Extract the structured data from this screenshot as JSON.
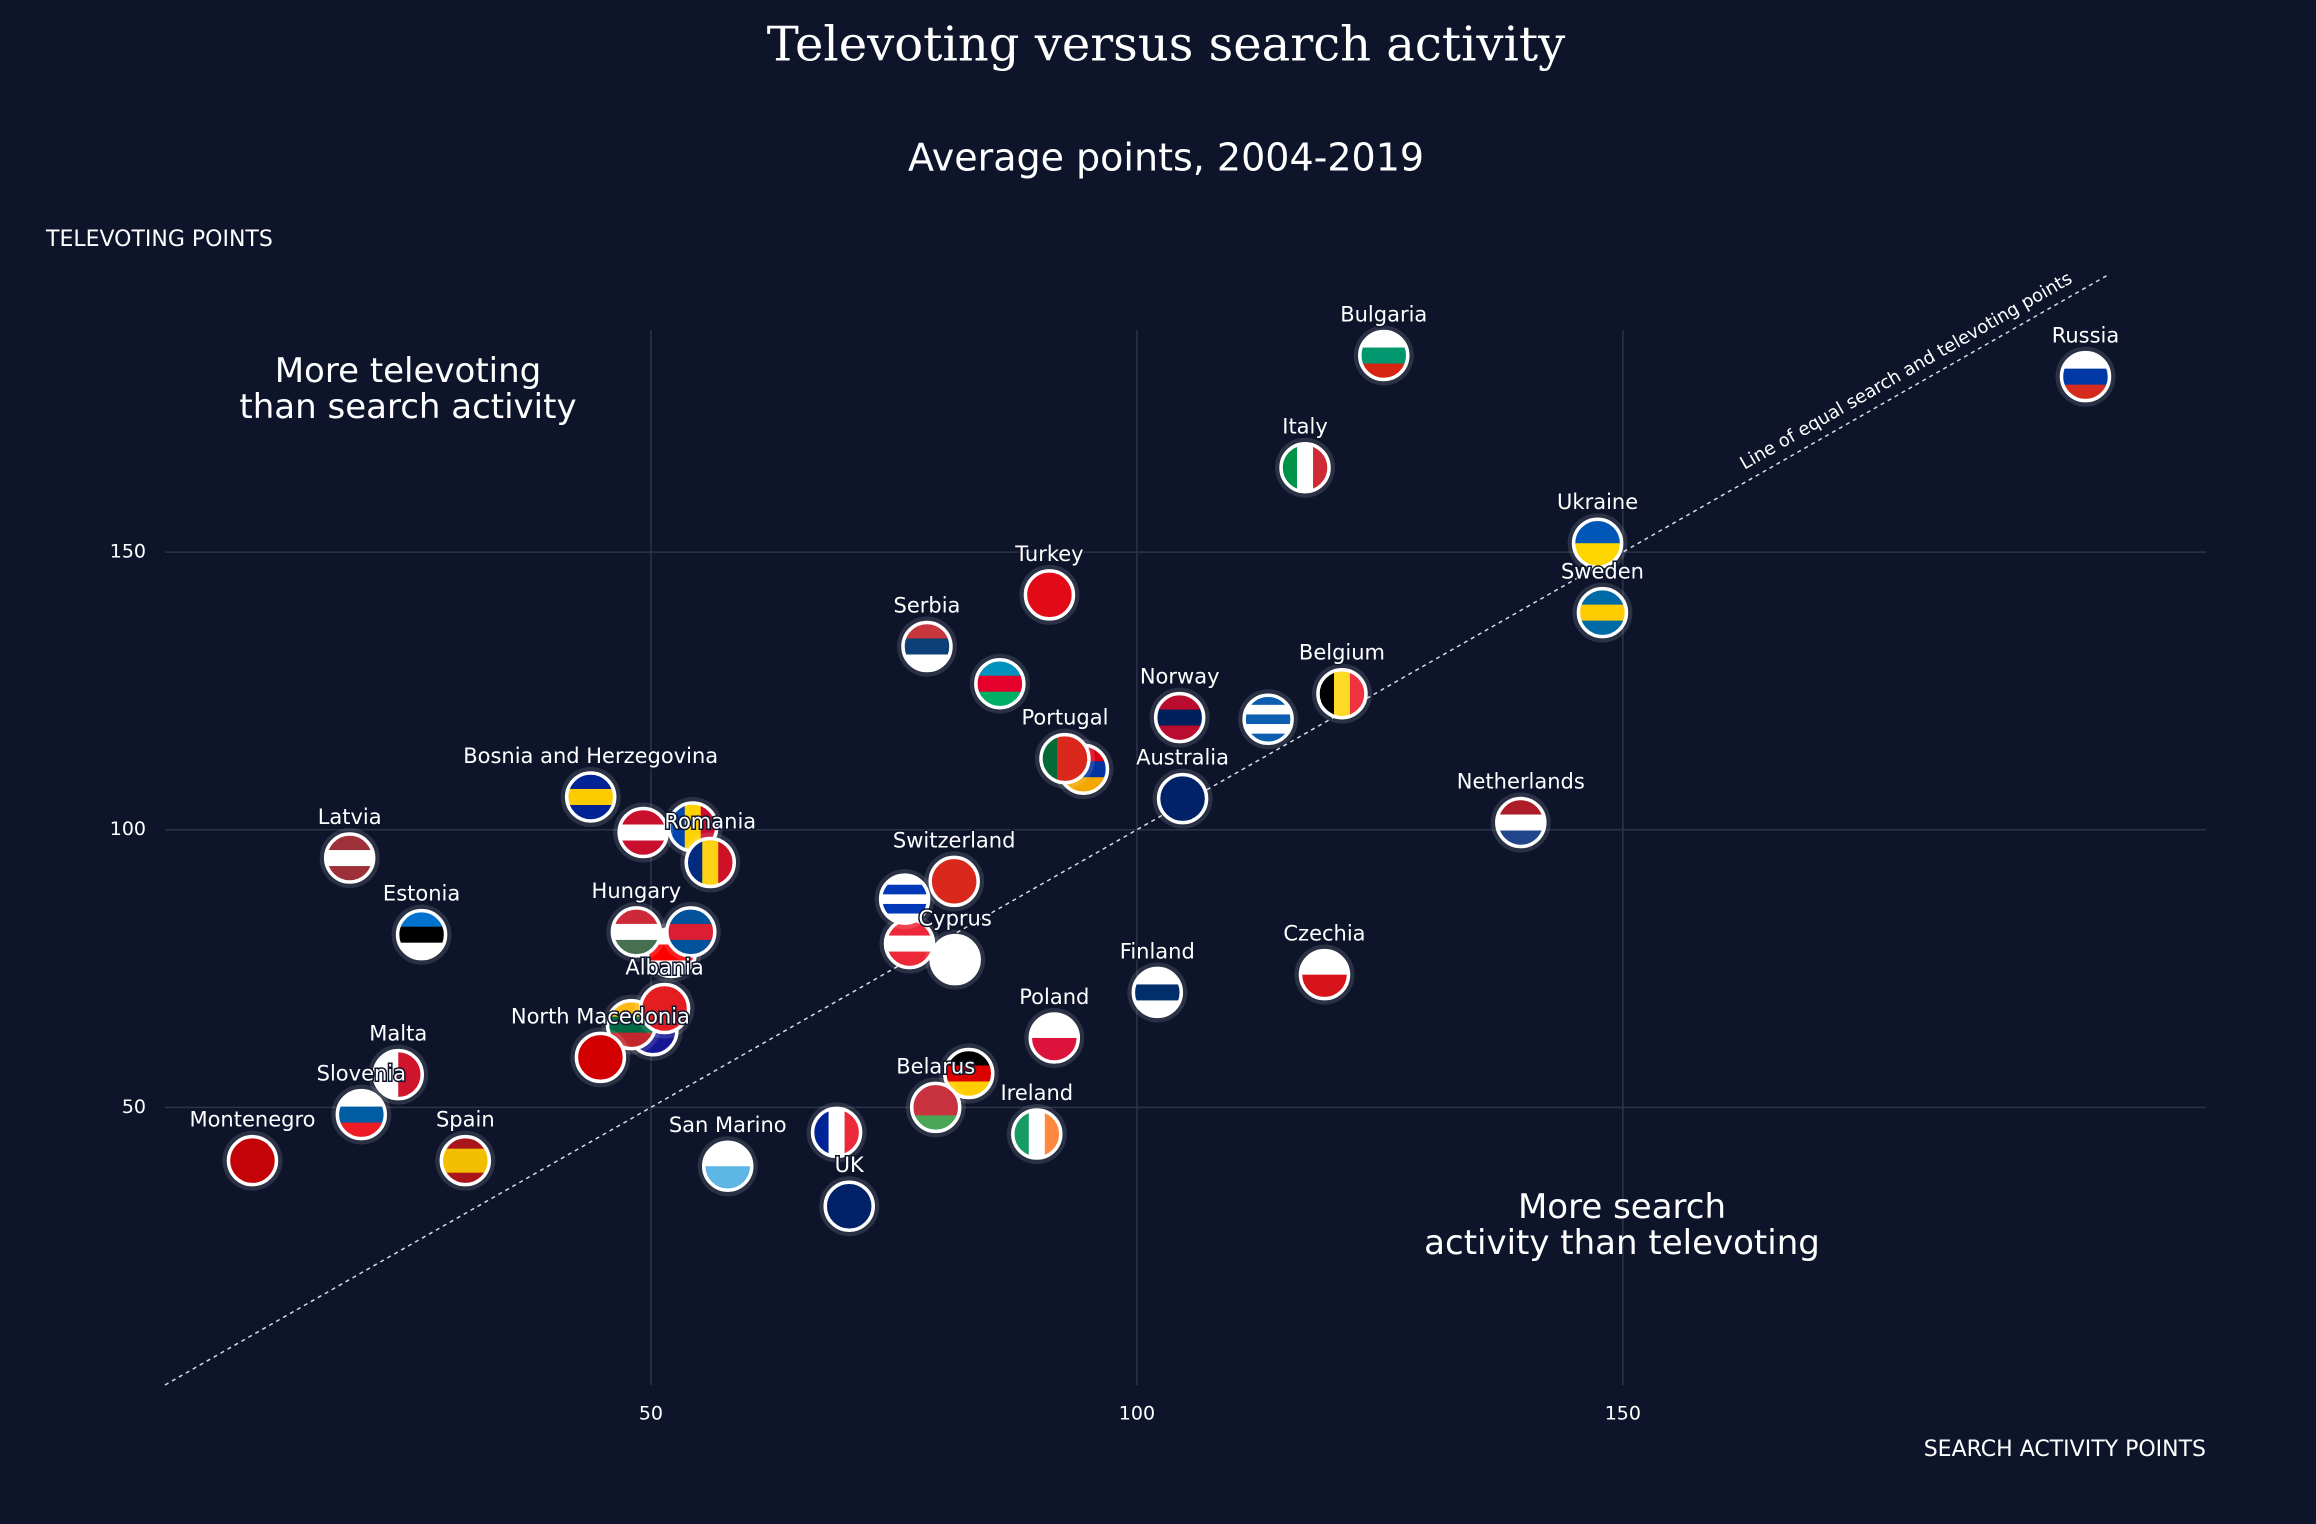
{
  "chart_data": {
    "type": "scatter",
    "title": "Televoting versus search activity",
    "subtitle": "Average points, 2004-2019",
    "y_label": "TELEVOTING POINTS",
    "x_label": "SEARCH ACTIVITY POINTS",
    "annotations": [
      {
        "lines": [
          "More televoting",
          "than search activity"
        ]
      },
      {
        "lines": [
          "More search",
          "activity than televoting"
        ]
      }
    ],
    "reference_line": {
      "label": "Line of equal search and televoting points",
      "from": [
        0,
        0
      ],
      "to": [
        200,
        200
      ]
    },
    "xlim": [
      0,
      210
    ],
    "ylim": [
      0,
      190
    ],
    "xticks": [
      50,
      100,
      150
    ],
    "yticks": [
      50,
      100,
      150
    ],
    "grid": true,
    "labels": [
      "Bulgaria",
      "Russia",
      "Italy",
      "Ukraine",
      "Sweden",
      "Turkey",
      "Serbia",
      "Belgium",
      "Norway",
      "Portugal",
      "Australia",
      "Netherlands",
      "Bosnia and Herzegovina",
      "Latvia",
      "Romania",
      "Switzerland",
      "Estonia",
      "Hungary",
      "Cyprus",
      "Finland",
      "Czechia",
      "Albania",
      "Poland",
      "North Macedonia",
      "Malta",
      "Belarus",
      "Slovenia",
      "Ireland",
      "Montenegro",
      "Spain",
      "San Marino",
      "UK",
      null,
      null,
      null,
      null,
      null,
      null,
      null,
      null,
      null,
      null,
      null,
      null,
      null
    ],
    "x": [
      125.4,
      197.6,
      117.3,
      147.4,
      147.9,
      91.0,
      78.4,
      121.1,
      104.4,
      92.6,
      104.7,
      139.5,
      43.8,
      19.0,
      56.1,
      81.2,
      26.4,
      48.5,
      81.3,
      102.1,
      119.3,
      51.4,
      91.5,
      44.8,
      24.0,
      79.3,
      20.2,
      89.7,
      9.0,
      30.9,
      57.9,
      70.4,
      85.9,
      113.5,
      94.5,
      49.2,
      54.3,
      76.1,
      76.6,
      54.1,
      52.1,
      48.0,
      50.2,
      82.7,
      69.1
    ],
    "values": [
      185.4,
      181.6,
      165.2,
      151.6,
      139.1,
      142.3,
      133.0,
      124.5,
      120.2,
      112.8,
      105.6,
      101.3,
      105.9,
      94.9,
      94.1,
      90.7,
      81.1,
      81.6,
      76.6,
      70.7,
      73.9,
      67.8,
      62.5,
      59.0,
      55.9,
      50.0,
      48.7,
      45.2,
      40.4,
      40.4,
      39.4,
      32.2,
      126.3,
      119.9,
      110.9,
      99.5,
      100.5,
      87.5,
      79.5,
      81.6,
      77.9,
      64.9,
      63.8,
      56.1,
      45.5
    ],
    "flags": [
      {
        "dir": "h",
        "colors": [
          "#ffffff",
          "#00966e",
          "#d62612"
        ]
      },
      {
        "dir": "h",
        "colors": [
          "#ffffff",
          "#0039a6",
          "#d52b1e"
        ]
      },
      {
        "dir": "v",
        "colors": [
          "#009246",
          "#ffffff",
          "#ce2b37"
        ]
      },
      {
        "dir": "h",
        "colors": [
          "#0057b7",
          "#ffd700"
        ]
      },
      {
        "dir": "h",
        "colors": [
          "#006aa7",
          "#fecc00",
          "#006aa7"
        ]
      },
      {
        "dir": "h",
        "colors": [
          "#e30a17"
        ]
      },
      {
        "dir": "h",
        "colors": [
          "#c6363c",
          "#0c4076",
          "#ffffff"
        ]
      },
      {
        "dir": "v",
        "colors": [
          "#000000",
          "#fdda24",
          "#ef3340"
        ]
      },
      {
        "dir": "h",
        "colors": [
          "#ba0c2f",
          "#00205b",
          "#ba0c2f"
        ]
      },
      {
        "dir": "v",
        "colors": [
          "#046a38",
          "#da291c",
          "#da291c"
        ]
      },
      {
        "dir": "h",
        "colors": [
          "#012169"
        ]
      },
      {
        "dir": "h",
        "colors": [
          "#ae1c28",
          "#ffffff",
          "#21468b"
        ]
      },
      {
        "dir": "h",
        "colors": [
          "#002395",
          "#fecb00",
          "#002395"
        ]
      },
      {
        "dir": "h",
        "colors": [
          "#9e3039",
          "#ffffff",
          "#9e3039"
        ]
      },
      {
        "dir": "v",
        "colors": [
          "#002b7f",
          "#fcd116",
          "#ce1126"
        ]
      },
      {
        "dir": "h",
        "colors": [
          "#da291c"
        ]
      },
      {
        "dir": "h",
        "colors": [
          "#0072ce",
          "#000000",
          "#ffffff"
        ]
      },
      {
        "dir": "h",
        "colors": [
          "#ce2939",
          "#ffffff",
          "#477050"
        ]
      },
      {
        "dir": "h",
        "colors": [
          "#ffffff"
        ]
      },
      {
        "dir": "h",
        "colors": [
          "#ffffff",
          "#002f6c",
          "#ffffff"
        ]
      },
      {
        "dir": "h",
        "colors": [
          "#ffffff",
          "#d7141a"
        ]
      },
      {
        "dir": "h",
        "colors": [
          "#e41e20"
        ]
      },
      {
        "dir": "h",
        "colors": [
          "#ffffff",
          "#dc143c"
        ]
      },
      {
        "dir": "h",
        "colors": [
          "#d20000"
        ]
      },
      {
        "dir": "v",
        "colors": [
          "#ffffff",
          "#cf142b"
        ]
      },
      {
        "dir": "h",
        "colors": [
          "#c8313e",
          "#c8313e",
          "#4aa657"
        ]
      },
      {
        "dir": "h",
        "colors": [
          "#ffffff",
          "#005da4",
          "#ed1c24"
        ]
      },
      {
        "dir": "v",
        "colors": [
          "#169b62",
          "#ffffff",
          "#ff883e"
        ]
      },
      {
        "dir": "h",
        "colors": [
          "#c40308"
        ]
      },
      {
        "dir": "h",
        "colors": [
          "#aa151b",
          "#f1bf00",
          "#f1bf00",
          "#aa151b"
        ]
      },
      {
        "dir": "h",
        "colors": [
          "#ffffff",
          "#5eb6e4"
        ]
      },
      {
        "dir": "h",
        "colors": [
          "#012169"
        ]
      },
      {
        "dir": "h",
        "colors": [
          "#0092bc",
          "#e4002b",
          "#00af66"
        ]
      },
      {
        "dir": "h",
        "colors": [
          "#0d5eaf",
          "#ffffff",
          "#0d5eaf",
          "#ffffff",
          "#0d5eaf"
        ]
      },
      {
        "dir": "h",
        "colors": [
          "#d90012",
          "#0033a0",
          "#f2a800"
        ]
      },
      {
        "dir": "h",
        "colors": [
          "#c8102e",
          "#ffffff",
          "#c8102e"
        ]
      },
      {
        "dir": "v",
        "colors": [
          "#0046ae",
          "#ffd200",
          "#cc092f"
        ]
      },
      {
        "dir": "h",
        "colors": [
          "#ffffff",
          "#0038b8",
          "#ffffff",
          "#0038b8",
          "#ffffff"
        ]
      },
      {
        "dir": "h",
        "colors": [
          "#ed2939",
          "#ffffff",
          "#ed2939"
        ]
      },
      {
        "dir": "h",
        "colors": [
          "#02529c",
          "#dc1e35",
          "#02529c"
        ]
      },
      {
        "dir": "h",
        "colors": [
          "#ffffff",
          "#ff0000",
          "#ffffff"
        ]
      },
      {
        "dir": "h",
        "colors": [
          "#fdb913",
          "#006a44",
          "#c1272d"
        ]
      },
      {
        "dir": "h",
        "colors": [
          "#ffffff",
          "#171796"
        ]
      },
      {
        "dir": "h",
        "colors": [
          "#000000",
          "#dd0000",
          "#ffce00"
        ]
      },
      {
        "dir": "v",
        "colors": [
          "#002395",
          "#ffffff",
          "#ed2939"
        ]
      }
    ]
  }
}
